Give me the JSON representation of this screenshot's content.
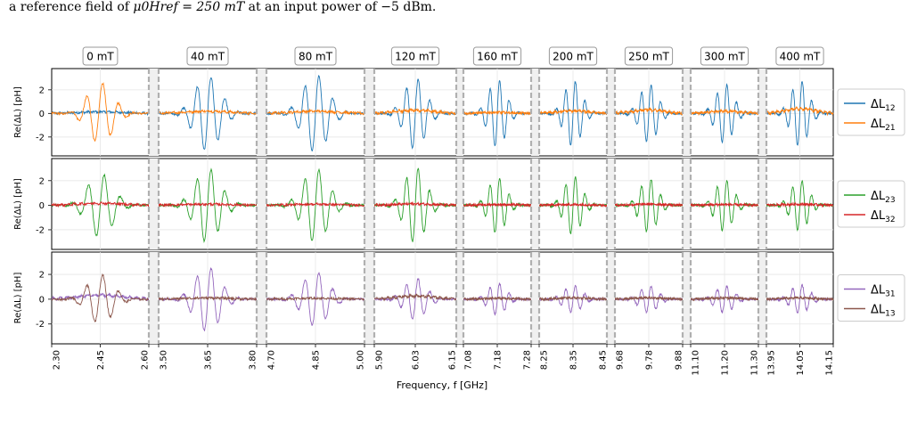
{
  "caption": {
    "prefix": "a reference field of ",
    "math": "μ0Href = 250 mT",
    "suffix": " at an input power of −5 dBm."
  },
  "chart_data": {
    "type": "line",
    "xlabel": "Frequency, f [GHz]",
    "ylabel": "Re(ΔL) [pH]",
    "ylim": [
      -3.6,
      3.8
    ],
    "yticks": [
      -2,
      0,
      2
    ],
    "grid": true,
    "segments": [
      {
        "field": "0 mT",
        "xlim": [
          2.3,
          2.6
        ],
        "xticks": [
          "2.30",
          "2.45",
          "2.60"
        ],
        "amps": [
          [
            0.25,
            2.6
          ],
          [
            2.6,
            0.3
          ],
          [
            0.6,
            2.0
          ]
        ]
      },
      {
        "field": "40 mT",
        "xlim": [
          3.5,
          3.8
        ],
        "xticks": [
          "3.50",
          "3.65",
          "3.80"
        ],
        "amps": [
          [
            3.2,
            0.35
          ],
          [
            3.0,
            0.15
          ],
          [
            2.6,
            0.2
          ]
        ]
      },
      {
        "field": "80 mT",
        "xlim": [
          4.7,
          5.0
        ],
        "xticks": [
          "4.70",
          "4.85",
          "5.00"
        ],
        "amps": [
          [
            3.3,
            0.35
          ],
          [
            3.0,
            0.15
          ],
          [
            2.2,
            0.15
          ]
        ]
      },
      {
        "field": "120 mT",
        "xlim": [
          5.9,
          6.15
        ],
        "xticks": [
          "5.90",
          "6.03",
          "6.15"
        ],
        "amps": [
          [
            3.0,
            0.5
          ],
          [
            3.1,
            0.2
          ],
          [
            1.7,
            0.5
          ]
        ]
      },
      {
        "field": "160 mT",
        "xlim": [
          7.08,
          7.28
        ],
        "xticks": [
          "7.08",
          "7.18",
          "7.28"
        ],
        "amps": [
          [
            2.9,
            0.15
          ],
          [
            2.3,
            0.1
          ],
          [
            1.3,
            0.15
          ]
        ]
      },
      {
        "field": "200 mT",
        "xlim": [
          8.25,
          8.45
        ],
        "xticks": [
          "8.25",
          "8.35",
          "8.45"
        ],
        "amps": [
          [
            2.8,
            0.4
          ],
          [
            2.4,
            0.1
          ],
          [
            1.1,
            0.2
          ]
        ]
      },
      {
        "field": "250 mT",
        "xlim": [
          9.68,
          9.88
        ],
        "xticks": [
          "9.68",
          "9.78",
          "9.88"
        ],
        "amps": [
          [
            2.5,
            0.55
          ],
          [
            2.2,
            0.15
          ],
          [
            1.1,
            0.2
          ]
        ]
      },
      {
        "field": "300 mT",
        "xlim": [
          11.1,
          11.3
        ],
        "xticks": [
          "11.10",
          "11.20",
          "11.30"
        ],
        "amps": [
          [
            2.5,
            0.35
          ],
          [
            2.1,
            0.1
          ],
          [
            1.1,
            0.2
          ]
        ]
      },
      {
        "field": "400 mT",
        "xlim": [
          13.95,
          14.15
        ],
        "xticks": [
          "13.95",
          "14.05",
          "14.15"
        ],
        "amps": [
          [
            2.8,
            0.75
          ],
          [
            2.1,
            0.15
          ],
          [
            1.2,
            0.2
          ]
        ]
      }
    ],
    "panels": [
      {
        "series": [
          {
            "name": "ΔL",
            "sub": "12",
            "color": "#1f77b4"
          },
          {
            "name": "ΔL",
            "sub": "21",
            "color": "#ff7f0e"
          }
        ]
      },
      {
        "series": [
          {
            "name": "ΔL",
            "sub": "23",
            "color": "#2ca02c"
          },
          {
            "name": "ΔL",
            "sub": "32",
            "color": "#d62728"
          }
        ]
      },
      {
        "series": [
          {
            "name": "ΔL",
            "sub": "31",
            "color": "#9467bd"
          },
          {
            "name": "ΔL",
            "sub": "13",
            "color": "#8c564b"
          }
        ]
      }
    ],
    "legend": "right"
  }
}
